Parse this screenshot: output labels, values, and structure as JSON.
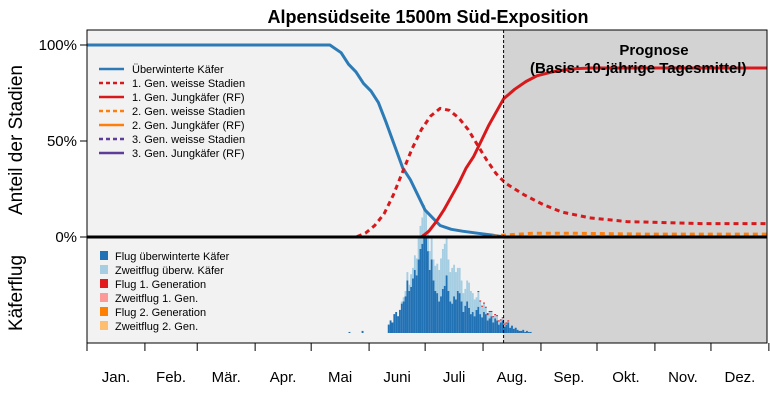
{
  "chart_data": {
    "type": "line",
    "title": "Alpensüdseite 1500m Süd-Exposition",
    "ylabel": "Anteil der Stadien",
    "ylabel_lower": "Käferflug",
    "yticks": [
      "0%",
      "50%",
      "100%"
    ],
    "ylim": [
      0,
      105
    ],
    "xlim": [
      1,
      365
    ],
    "months": [
      "Jan.",
      "Feb.",
      "Mär.",
      "Apr.",
      "Mai",
      "Juni",
      "Juli",
      "Aug.",
      "Sep.",
      "Okt.",
      "Nov.",
      "Dez."
    ],
    "forecast_start_day": 224,
    "prognose_title": "Prognose",
    "prognose_subtitle": "(Basis: 10-jährige Tagesmittel)",
    "colors": {
      "overwintered": "#2c7bb6",
      "gen1": "#d7191c",
      "gen2": "#ff7f0e",
      "gen3": "#5e3c99",
      "bar_flight_overwintered": "#2171b5",
      "bar_second_flight": "#a6cee3",
      "bar_flight_gen1": "#e31a1c",
      "bar_second_gen1": "#fb9a99",
      "bar_flight_gen2": "#ff7f00",
      "bar_second_gen2": "#fdbf6f",
      "forecast_bg": "#d3d3d3",
      "plot_bg": "#f2f2f2"
    },
    "legend_lines": [
      {
        "label": "Überwinterte Käfer",
        "color": "#2c7bb6",
        "dash": "solid"
      },
      {
        "label": "1. Gen. weisse Stadien",
        "color": "#d7191c",
        "dash": "dashed"
      },
      {
        "label": "1. Gen. Jungkäfer (RF)",
        "color": "#d7191c",
        "dash": "solid"
      },
      {
        "label": "2. Gen. weisse Stadien",
        "color": "#ff7f0e",
        "dash": "dashed"
      },
      {
        "label": "2. Gen. Jungkäfer (RF)",
        "color": "#ff7f0e",
        "dash": "solid"
      },
      {
        "label": "3. Gen. weisse Stadien",
        "color": "#5e3c99",
        "dash": "dashed"
      },
      {
        "label": "3. Gen. Jungkäfer (RF)",
        "color": "#5e3c99",
        "dash": "solid"
      }
    ],
    "legend_bars": [
      {
        "label": "Flug überwinterte Käfer",
        "color": "#2171b5"
      },
      {
        "label": "Zweitflug überw. Käfer",
        "color": "#a6cee3"
      },
      {
        "label": "Flug 1. Generation",
        "color": "#e31a1c"
      },
      {
        "label": "Zweitflug 1. Gen.",
        "color": "#fb9a99"
      },
      {
        "label": "Flug 2. Generation",
        "color": "#ff7f00"
      },
      {
        "label": "Zweitflug 2. Gen.",
        "color": "#fdbf6f"
      }
    ],
    "series": [
      {
        "name": "Überwinterte Käfer",
        "x": [
          1,
          110,
          120,
          131,
          137,
          141,
          145,
          149,
          153,
          157,
          161,
          164,
          167,
          170,
          174,
          178,
          182,
          186,
          190,
          196,
          202,
          210,
          218,
          224
        ],
        "values": [
          100,
          100,
          100,
          100,
          96,
          90,
          86,
          80,
          76,
          70,
          60,
          52,
          44,
          36,
          30,
          22,
          14,
          10,
          6,
          4,
          3,
          2,
          1,
          0
        ]
      },
      {
        "name": "1. Gen. weisse Stadien",
        "x": [
          1,
          145,
          150,
          155,
          160,
          165,
          170,
          175,
          180,
          185,
          190,
          195,
          200,
          205,
          210,
          215,
          220,
          225,
          235,
          245,
          255,
          270,
          290,
          310,
          330,
          350,
          365
        ],
        "values": [
          0,
          0,
          2,
          6,
          12,
          22,
          34,
          46,
          56,
          63,
          67,
          66,
          62,
          56,
          48,
          40,
          33,
          28,
          22,
          17,
          13,
          10,
          8,
          7.5,
          7,
          7,
          7
        ]
      },
      {
        "name": "1. Gen. Jungkäfer (RF)",
        "x": [
          1,
          180,
          184,
          188,
          192,
          196,
          200,
          204,
          208,
          212,
          216,
          220,
          224,
          230,
          236,
          242,
          250,
          260,
          270,
          285,
          300,
          320,
          340,
          365
        ],
        "values": [
          0,
          0,
          3,
          8,
          14,
          21,
          28,
          36,
          42,
          50,
          58,
          65,
          72,
          77,
          81,
          84,
          86,
          87.5,
          88,
          88,
          88,
          88,
          88,
          88
        ]
      },
      {
        "name": "2. Gen. weisse Stadien",
        "x": [
          1,
          215,
          224,
          240,
          260,
          300,
          365
        ],
        "values": [
          0,
          0,
          1,
          2,
          2,
          1.5,
          1.5
        ]
      },
      {
        "name": "2. Gen. Jungkäfer (RF)",
        "x": [
          1,
          365
        ],
        "values": [
          0,
          0
        ]
      }
    ],
    "flight_bars": {
      "x_start": 140,
      "x_end": 240,
      "overwintered": [
        0,
        1,
        0,
        0,
        0,
        0,
        0,
        0,
        2,
        0,
        0,
        0,
        0,
        0,
        0,
        0,
        0,
        0,
        0,
        0,
        0,
        0,
        8,
        12,
        10,
        18,
        20,
        16,
        22,
        28,
        30,
        35,
        50,
        40,
        44,
        52,
        60,
        55,
        70,
        80,
        85,
        92,
        90,
        78,
        60,
        70,
        50,
        40,
        38,
        30,
        35,
        42,
        45,
        55,
        40,
        30,
        28,
        35,
        32,
        40,
        38,
        30,
        20,
        26,
        30,
        24,
        18,
        20,
        16,
        22,
        25,
        18,
        15,
        20,
        18,
        12,
        14,
        16,
        10,
        14,
        12,
        8,
        10,
        12,
        6,
        8,
        10,
        5,
        7,
        4,
        5,
        3,
        2,
        2,
        3,
        1,
        2,
        1,
        1,
        0,
        0
      ],
      "second_flight": [
        0,
        0,
        0,
        0,
        0,
        0,
        0,
        0,
        0,
        0,
        0,
        0,
        0,
        0,
        0,
        0,
        0,
        0,
        0,
        0,
        0,
        0,
        0,
        0,
        0,
        0,
        0,
        0,
        0,
        2,
        4,
        5,
        8,
        6,
        12,
        10,
        14,
        16,
        20,
        22,
        25,
        30,
        26,
        20,
        18,
        22,
        20,
        24,
        28,
        30,
        36,
        38,
        40,
        35,
        30,
        28,
        34,
        30,
        26,
        22,
        24,
        20,
        18,
        16,
        20,
        24,
        22,
        18,
        16,
        12,
        14,
        12,
        10,
        8,
        6,
        5,
        6,
        4,
        5,
        3,
        4,
        3,
        2,
        2,
        2,
        1,
        1,
        1,
        0,
        1,
        0,
        0,
        0,
        0,
        0,
        0,
        0,
        0,
        0,
        0,
        0
      ],
      "gen1": [
        0,
        0,
        0,
        0,
        0,
        0,
        0,
        0,
        0,
        0,
        0,
        0,
        0,
        0,
        0,
        0,
        0,
        0,
        0,
        0,
        0,
        0,
        0,
        0,
        0,
        0,
        0,
        0,
        0,
        0,
        0,
        0,
        0,
        0,
        0,
        0,
        0,
        0,
        0,
        0,
        0,
        0,
        0,
        0,
        0,
        0,
        0,
        0,
        0,
        0,
        0,
        0,
        0,
        0,
        0,
        0,
        0,
        0,
        0,
        0,
        0,
        0,
        0,
        0,
        0,
        0,
        0,
        0,
        0,
        0,
        1,
        1,
        1,
        1,
        1,
        2,
        1,
        1,
        1,
        1,
        1,
        1,
        1,
        1,
        1,
        1,
        1,
        0,
        0,
        0,
        0,
        0,
        0,
        0,
        0,
        0,
        0,
        0,
        0,
        0,
        0
      ]
    }
  }
}
